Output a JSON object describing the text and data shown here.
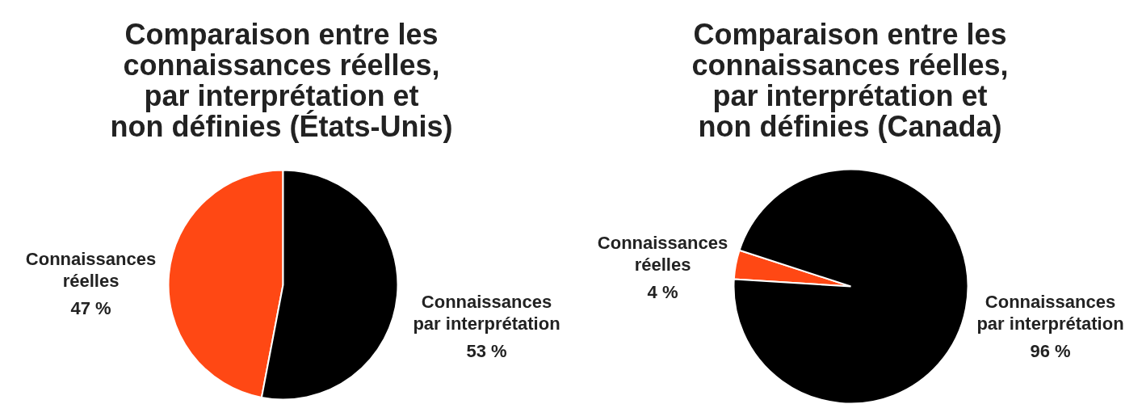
{
  "chart_data": [
    {
      "type": "pie",
      "title": "Comparaison entre les\nconnaissances réelles,\npar interprétation et\nnon définies (États-Unis)",
      "categories": [
        "Connaissances réelles",
        "Connaissances par interprétation"
      ],
      "values": [
        47,
        53
      ],
      "colors": [
        "#ff4814",
        "#000000"
      ],
      "value_labels": [
        "47 %",
        "53 %"
      ]
    },
    {
      "type": "pie",
      "title": "Comparaison entre les\nconnaissances réelles,\npar interprétation et\nnon définies (Canada)",
      "categories": [
        "Connaissances réelles",
        "Connaissances par interprétation"
      ],
      "values": [
        4,
        96
      ],
      "colors": [
        "#ff4814",
        "#000000"
      ],
      "value_labels": [
        "4 %",
        "96 %"
      ]
    }
  ]
}
